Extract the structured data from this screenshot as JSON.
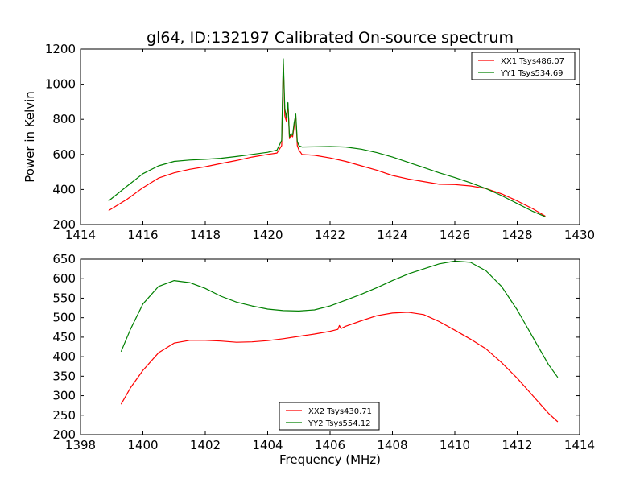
{
  "figure": {
    "title": "gl64, ID:132197 Calibrated On-source spectrum"
  },
  "chart_data": [
    {
      "type": "line",
      "title": "gl64, ID:132197 Calibrated On-source spectrum",
      "xlabel": "",
      "ylabel": "Power in Kelvin",
      "xlim": [
        1414,
        1430
      ],
      "ylim": [
        200,
        1200
      ],
      "xticks": [
        1414,
        1416,
        1418,
        1420,
        1422,
        1424,
        1426,
        1428,
        1430
      ],
      "yticks": [
        200,
        400,
        600,
        800,
        1000,
        1200
      ],
      "legend_position": "top-right",
      "series": [
        {
          "name": "XX1 Tsys486.07",
          "color": "#ff0000",
          "x": [
            1414.9,
            1415.5,
            1416.0,
            1416.5,
            1417.0,
            1417.5,
            1418.0,
            1418.5,
            1419.0,
            1419.5,
            1420.0,
            1420.3,
            1420.45,
            1420.5,
            1420.55,
            1420.6,
            1420.65,
            1420.7,
            1420.75,
            1420.8,
            1420.85,
            1420.9,
            1420.95,
            1421.0,
            1421.1,
            1421.5,
            1422.0,
            1422.5,
            1423.0,
            1423.5,
            1424.0,
            1424.5,
            1425.0,
            1425.5,
            1426.0,
            1426.5,
            1427.0,
            1427.5,
            1428.0,
            1428.5,
            1428.9
          ],
          "y": [
            280,
            345,
            410,
            465,
            495,
            515,
            530,
            548,
            565,
            585,
            600,
            608,
            650,
            1120,
            820,
            790,
            890,
            690,
            710,
            700,
            760,
            820,
            650,
            625,
            600,
            595,
            580,
            560,
            535,
            510,
            480,
            460,
            445,
            430,
            428,
            420,
            405,
            375,
            335,
            290,
            248
          ]
        },
        {
          "name": "YY1 Tsys534.69",
          "color": "#008000",
          "x": [
            1414.9,
            1415.5,
            1416.0,
            1416.5,
            1417.0,
            1417.5,
            1418.0,
            1418.5,
            1419.0,
            1419.5,
            1420.0,
            1420.3,
            1420.45,
            1420.5,
            1420.55,
            1420.6,
            1420.65,
            1420.7,
            1420.75,
            1420.8,
            1420.85,
            1420.9,
            1420.95,
            1421.0,
            1421.1,
            1421.5,
            1422.0,
            1422.5,
            1423.0,
            1423.5,
            1424.0,
            1424.5,
            1425.0,
            1425.5,
            1426.0,
            1426.5,
            1427.0,
            1427.5,
            1428.0,
            1428.5,
            1428.9
          ],
          "y": [
            335,
            420,
            490,
            535,
            560,
            568,
            572,
            578,
            588,
            600,
            612,
            625,
            680,
            1145,
            860,
            810,
            895,
            700,
            720,
            710,
            780,
            830,
            675,
            650,
            642,
            643,
            645,
            642,
            630,
            610,
            585,
            555,
            525,
            495,
            468,
            438,
            405,
            365,
            320,
            275,
            245
          ]
        }
      ]
    },
    {
      "type": "line",
      "title": "",
      "xlabel": "Frequency (MHz)",
      "ylabel": "",
      "xlim": [
        1398,
        1414
      ],
      "ylim": [
        200,
        650
      ],
      "xticks": [
        1398,
        1400,
        1402,
        1404,
        1406,
        1408,
        1410,
        1412,
        1414
      ],
      "yticks": [
        200,
        250,
        300,
        350,
        400,
        450,
        500,
        550,
        600,
        650
      ],
      "legend_position": "lower-center",
      "series": [
        {
          "name": "XX2 Tsys430.71",
          "color": "#ff0000",
          "x": [
            1399.3,
            1399.6,
            1400.0,
            1400.5,
            1401.0,
            1401.5,
            1402.0,
            1402.5,
            1403.0,
            1403.5,
            1404.0,
            1404.5,
            1405.0,
            1405.5,
            1406.0,
            1406.25,
            1406.3,
            1406.35,
            1406.5,
            1407.0,
            1407.5,
            1408.0,
            1408.5,
            1409.0,
            1409.5,
            1410.0,
            1410.5,
            1411.0,
            1411.5,
            1412.0,
            1412.5,
            1413.0,
            1413.3
          ],
          "y": [
            278,
            320,
            365,
            410,
            435,
            442,
            442,
            440,
            437,
            438,
            441,
            446,
            452,
            458,
            465,
            470,
            480,
            472,
            478,
            492,
            505,
            512,
            514,
            508,
            490,
            468,
            445,
            420,
            385,
            345,
            300,
            255,
            233
          ]
        },
        {
          "name": "YY2 Tsys554.12",
          "color": "#008000",
          "x": [
            1399.3,
            1399.6,
            1400.0,
            1400.5,
            1401.0,
            1401.5,
            1402.0,
            1402.5,
            1403.0,
            1403.5,
            1404.0,
            1404.5,
            1405.0,
            1405.5,
            1406.0,
            1406.5,
            1407.0,
            1407.5,
            1408.0,
            1408.5,
            1409.0,
            1409.5,
            1410.0,
            1410.5,
            1411.0,
            1411.5,
            1412.0,
            1412.5,
            1413.0,
            1413.3
          ],
          "y": [
            413,
            470,
            535,
            580,
            595,
            590,
            575,
            555,
            540,
            530,
            522,
            518,
            517,
            520,
            530,
            545,
            560,
            577,
            595,
            612,
            625,
            638,
            645,
            642,
            620,
            580,
            520,
            450,
            380,
            347
          ]
        }
      ]
    }
  ]
}
